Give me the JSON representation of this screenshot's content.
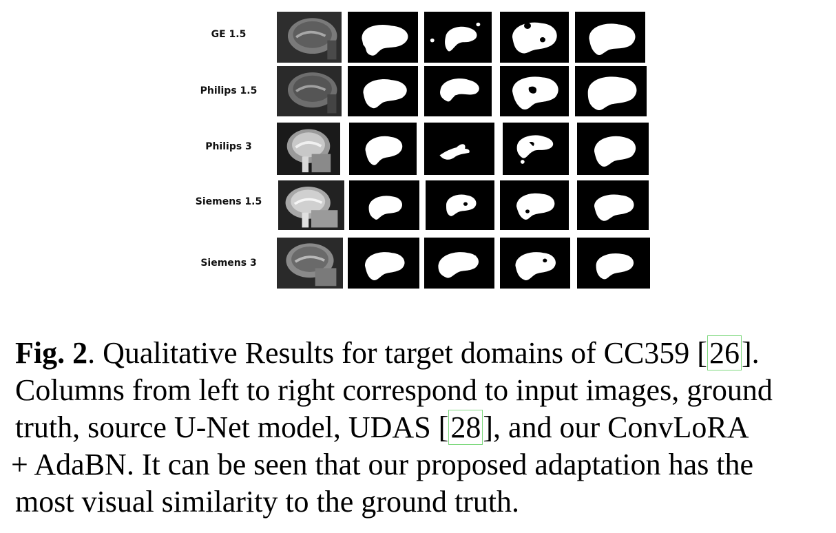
{
  "figure": {
    "rows": [
      {
        "label": "GE 1.5"
      },
      {
        "label": "Philips 1.5"
      },
      {
        "label": "Philips 3"
      },
      {
        "label": "Siemens 1.5"
      },
      {
        "label": "Siemens 3"
      }
    ]
  },
  "caption": {
    "fig_label": "Fig. 2",
    "line1_a": ". Qualitative Results for target domains of CC359 [",
    "ref1": "26",
    "line1_b": "].",
    "line2": "Columns from left to right correspond to input images, ground",
    "line3_a": "truth, source U-Net model, UDAS [",
    "ref2": "28",
    "line3_b": "], and our ConvLoRA",
    "line4": "+ AdaBN. It can be seen that our proposed adaptation has the",
    "line5": "most visual similarity to the ground truth."
  }
}
